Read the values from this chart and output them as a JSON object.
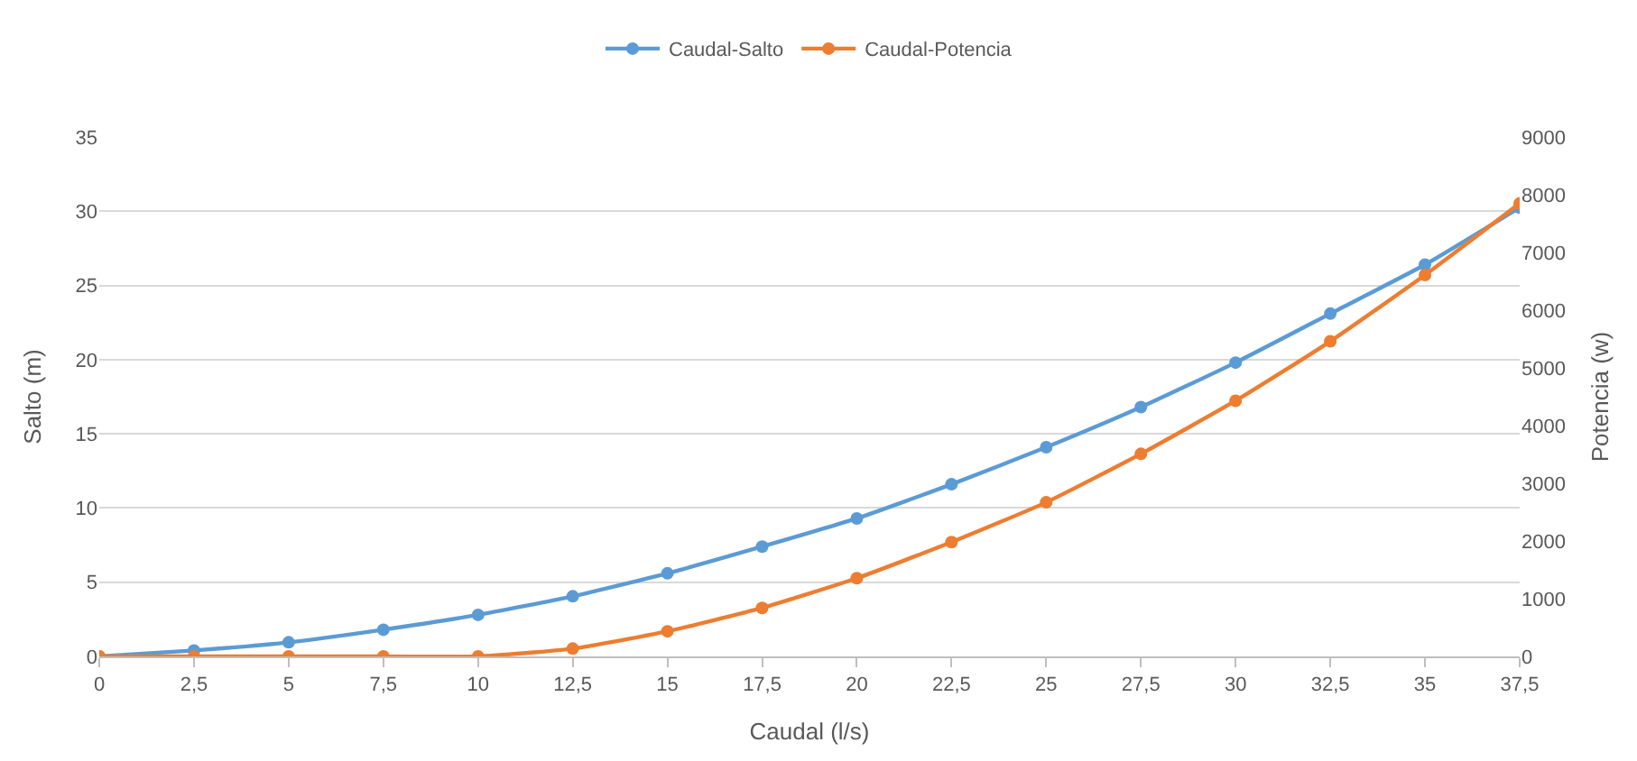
{
  "chart_data": {
    "type": "line",
    "xlabel": "Caudal (l/s)",
    "ylabel": "Salto (m)",
    "y2label": "Potencia (w)",
    "x": [
      0,
      2.5,
      5,
      7.5,
      10,
      12.5,
      15,
      17.5,
      20,
      22.5,
      25,
      27.5,
      30,
      32.5,
      35,
      37.5
    ],
    "series": [
      {
        "name": "Caudal-Salto",
        "color": "#5b9bd5",
        "values": [
          0,
          0.4,
          0.95,
          1.8,
          2.8,
          4.05,
          5.6,
          7.4,
          9.3,
          11.6,
          14.1,
          16.8,
          19.8,
          23.1,
          26.4,
          30.25
        ]
      },
      {
        "name": "Caudal-Potencia",
        "color": "#ed7d31",
        "axis": "y2",
        "values": [
          0,
          0,
          0,
          0,
          0,
          135,
          435,
          840,
          1355,
          1980,
          2670,
          3510,
          4430,
          5460,
          6610,
          7850
        ]
      }
    ],
    "xlim": [
      0,
      37.5
    ],
    "xticks": [
      0,
      {
        "value": 2.5,
        "label": "2,5"
      },
      5,
      {
        "value": 7.5,
        "label": "7,5"
      },
      10,
      {
        "value": 12.5,
        "label": "12,5"
      },
      15,
      {
        "value": 17.5,
        "label": "17,5"
      },
      20,
      {
        "value": 22.5,
        "label": "22,5"
      },
      25,
      {
        "value": 27.5,
        "label": "27,5"
      },
      30,
      {
        "value": 32.5,
        "label": "32,5"
      },
      35,
      {
        "value": 37.5,
        "label": "37,5"
      }
    ],
    "ylim": [
      0,
      35
    ],
    "yticks": [
      0,
      5,
      10,
      15,
      20,
      25,
      30,
      35
    ],
    "y2lim": [
      0,
      9000
    ],
    "y2ticks": [
      0,
      1000,
      2000,
      3000,
      4000,
      5000,
      6000,
      7000,
      8000,
      9000
    ],
    "grid": "y",
    "legend": "top",
    "marker": "circle",
    "line_style": "solid"
  }
}
